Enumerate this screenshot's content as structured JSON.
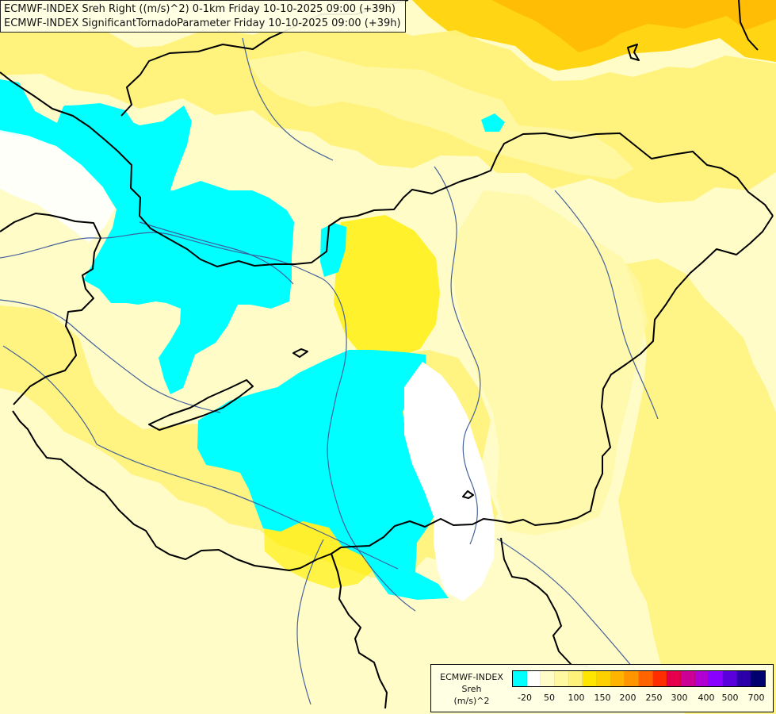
{
  "header": {
    "line1": "ECMWF-INDEX Sreh Right ((m/s)^2) 0-1km Friday 10-10-2025 09:00 (+39h)",
    "line2": "ECMWF-INDEX SignificantTornadoParameter Friday 10-10-2025 09:00 (+39h)"
  },
  "legend": {
    "title_line1": "ECMWF-INDEX",
    "title_line2": "Sreh",
    "title_line3": "(m/s)^2",
    "labels": [
      "-20",
      "50",
      "100",
      "150",
      "200",
      "250",
      "300",
      "400",
      "500",
      "700"
    ],
    "colors": [
      "#00ffff",
      "#ffffff",
      "#fffcc8",
      "#fff8a0",
      "#fff27a",
      "#ffe600",
      "#ffd000",
      "#ffb400",
      "#ff9600",
      "#ff6400",
      "#ff2d00",
      "#e6004b",
      "#cc0094",
      "#b100d2",
      "#8a00ff",
      "#5a00dc",
      "#2b00a8",
      "#00006e"
    ]
  },
  "palette": {
    "background": "#fffcc8",
    "pale": "#fff8a6",
    "yellow": "#fff27a",
    "bright_yellow": "#ffee00",
    "orange": "#ffd000",
    "deep_orange": "#ffb400",
    "cyan": "#00ffff",
    "white": "#ffffff",
    "border": "#000000",
    "river": "#3d5b98"
  },
  "icons": {
    "map": "weather-map",
    "rivers": "river-lines",
    "borders": "country-borders"
  }
}
